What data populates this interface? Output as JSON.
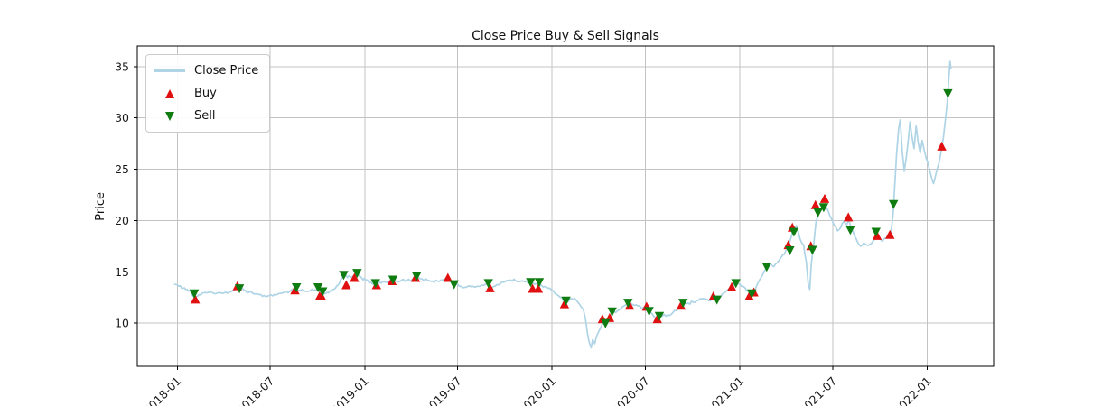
{
  "figure_title": "Close Price Buy & Sell Signals",
  "chart_data": {
    "type": "line",
    "title": "Close Price Buy & Sell Signals",
    "xlabel": "",
    "ylabel": "Price",
    "grid": true,
    "legend_position": "upper left",
    "xlim": [
      "2017-10-15",
      "2022-05-10"
    ],
    "ylim": [
      5.8,
      37.0
    ],
    "y_ticks": [
      10,
      15,
      20,
      25,
      30,
      35
    ],
    "x_ticks": [
      {
        "label": "2018-01",
        "value": "2018-01-01"
      },
      {
        "label": "2018-07",
        "value": "2018-07-01"
      },
      {
        "label": "2019-01",
        "value": "2019-01-01"
      },
      {
        "label": "2019-07",
        "value": "2019-07-01"
      },
      {
        "label": "2020-01",
        "value": "2020-01-01"
      },
      {
        "label": "2020-07",
        "value": "2020-07-01"
      },
      {
        "label": "2021-01",
        "value": "2021-01-01"
      },
      {
        "label": "2021-07",
        "value": "2021-07-01"
      },
      {
        "label": "2022-01",
        "value": "2022-01-01"
      }
    ],
    "colors": {
      "grid": "#c3c3c3",
      "spine": "#000000",
      "tick_text": "#1a1a1a"
    },
    "series": [
      {
        "name": "Close Price",
        "type": "line",
        "color": "#aed4e6",
        "points": [
          [
            "2017-12-27",
            13.8
          ],
          [
            "2018-01-04",
            13.6
          ],
          [
            "2018-01-12",
            13.4
          ],
          [
            "2018-01-20",
            13.3
          ],
          [
            "2018-01-28",
            13.0
          ],
          [
            "2018-02-05",
            12.4
          ],
          [
            "2018-02-13",
            12.8
          ],
          [
            "2018-02-21",
            12.95
          ],
          [
            "2018-03-03",
            13.0
          ],
          [
            "2018-03-13",
            12.9
          ],
          [
            "2018-03-23",
            13.0
          ],
          [
            "2018-04-02",
            12.95
          ],
          [
            "2018-04-12",
            13.05
          ],
          [
            "2018-04-22",
            13.25
          ],
          [
            "2018-04-30",
            13.5
          ],
          [
            "2018-05-10",
            13.25
          ],
          [
            "2018-05-20",
            13.0
          ],
          [
            "2018-05-30",
            12.85
          ],
          [
            "2018-06-09",
            12.8
          ],
          [
            "2018-06-19",
            12.7
          ],
          [
            "2018-06-29",
            12.7
          ],
          [
            "2018-07-09",
            12.8
          ],
          [
            "2018-07-19",
            12.9
          ],
          [
            "2018-07-29",
            13.0
          ],
          [
            "2018-08-08",
            13.1
          ],
          [
            "2018-08-18",
            13.3
          ],
          [
            "2018-08-28",
            13.2
          ],
          [
            "2018-09-07",
            13.1
          ],
          [
            "2018-09-17",
            13.15
          ],
          [
            "2018-09-27",
            13.25
          ],
          [
            "2018-10-03",
            13.3
          ],
          [
            "2018-10-09",
            12.75
          ],
          [
            "2018-10-17",
            12.9
          ],
          [
            "2018-10-25",
            13.1
          ],
          [
            "2018-11-02",
            13.3
          ],
          [
            "2018-11-10",
            13.7
          ],
          [
            "2018-11-18",
            14.4
          ],
          [
            "2018-11-26",
            14.6
          ],
          [
            "2018-12-04",
            14.5
          ],
          [
            "2018-12-12",
            14.6
          ],
          [
            "2018-12-18",
            14.8
          ],
          [
            "2018-12-26",
            14.4
          ],
          [
            "2019-01-03",
            14.2
          ],
          [
            "2019-01-13",
            14.0
          ],
          [
            "2019-01-23",
            13.8
          ],
          [
            "2019-02-02",
            13.9
          ],
          [
            "2019-02-12",
            14.0
          ],
          [
            "2019-02-22",
            14.15
          ],
          [
            "2019-03-04",
            14.1
          ],
          [
            "2019-03-14",
            14.2
          ],
          [
            "2019-03-24",
            14.15
          ],
          [
            "2019-04-03",
            14.25
          ],
          [
            "2019-04-13",
            14.5
          ],
          [
            "2019-04-23",
            14.3
          ],
          [
            "2019-05-03",
            14.2
          ],
          [
            "2019-05-13",
            14.1
          ],
          [
            "2019-05-23",
            14.1
          ],
          [
            "2019-06-02",
            14.2
          ],
          [
            "2019-06-12",
            14.35
          ],
          [
            "2019-06-22",
            14.0
          ],
          [
            "2019-06-28",
            13.8
          ],
          [
            "2019-07-08",
            13.6
          ],
          [
            "2019-07-18",
            13.5
          ],
          [
            "2019-07-28",
            13.55
          ],
          [
            "2019-08-07",
            13.6
          ],
          [
            "2019-08-17",
            13.7
          ],
          [
            "2019-08-27",
            13.85
          ],
          [
            "2019-09-02",
            13.45
          ],
          [
            "2019-09-12",
            13.6
          ],
          [
            "2019-09-22",
            13.85
          ],
          [
            "2019-10-02",
            14.05
          ],
          [
            "2019-10-12",
            14.2
          ],
          [
            "2019-10-22",
            14.15
          ],
          [
            "2019-11-01",
            14.1
          ],
          [
            "2019-11-11",
            14.05
          ],
          [
            "2019-11-21",
            13.95
          ],
          [
            "2019-12-01",
            13.85
          ],
          [
            "2019-12-11",
            13.7
          ],
          [
            "2019-12-21",
            13.5
          ],
          [
            "2019-12-31",
            13.2
          ],
          [
            "2020-01-10",
            12.8
          ],
          [
            "2020-01-20",
            12.5
          ],
          [
            "2020-01-27",
            12.0
          ],
          [
            "2020-02-04",
            12.3
          ],
          [
            "2020-02-14",
            12.4
          ],
          [
            "2020-02-24",
            11.8
          ],
          [
            "2020-03-02",
            11.3
          ],
          [
            "2020-03-06",
            10.4
          ],
          [
            "2020-03-10",
            9.0
          ],
          [
            "2020-03-13",
            8.2
          ],
          [
            "2020-03-17",
            7.6
          ],
          [
            "2020-03-20",
            8.4
          ],
          [
            "2020-03-24",
            8.0
          ],
          [
            "2020-03-30",
            9.0
          ],
          [
            "2020-04-05",
            9.6
          ],
          [
            "2020-04-11",
            10.1
          ],
          [
            "2020-04-19",
            10.3
          ],
          [
            "2020-04-27",
            11.0
          ],
          [
            "2020-05-07",
            11.2
          ],
          [
            "2020-05-17",
            11.6
          ],
          [
            "2020-05-27",
            11.9
          ],
          [
            "2020-06-06",
            11.8
          ],
          [
            "2020-06-16",
            11.7
          ],
          [
            "2020-06-26",
            11.5
          ],
          [
            "2020-07-04",
            11.5
          ],
          [
            "2020-07-14",
            10.9
          ],
          [
            "2020-07-24",
            10.5
          ],
          [
            "2020-08-03",
            10.7
          ],
          [
            "2020-08-13",
            10.8
          ],
          [
            "2020-08-23",
            11.0
          ],
          [
            "2020-09-02",
            11.4
          ],
          [
            "2020-09-12",
            11.9
          ],
          [
            "2020-09-22",
            11.95
          ],
          [
            "2020-10-02",
            12.05
          ],
          [
            "2020-10-12",
            12.25
          ],
          [
            "2020-10-22",
            12.4
          ],
          [
            "2020-11-01",
            12.2
          ],
          [
            "2020-11-11",
            12.55
          ],
          [
            "2020-11-17",
            12.3
          ],
          [
            "2020-11-27",
            12.8
          ],
          [
            "2020-12-07",
            13.2
          ],
          [
            "2020-12-17",
            13.5
          ],
          [
            "2020-12-25",
            13.85
          ],
          [
            "2021-01-04",
            13.6
          ],
          [
            "2021-01-14",
            13.2
          ],
          [
            "2021-01-21",
            12.8
          ],
          [
            "2021-01-29",
            13.1
          ],
          [
            "2021-02-08",
            14.2
          ],
          [
            "2021-02-18",
            15.1
          ],
          [
            "2021-02-26",
            15.8
          ],
          [
            "2021-03-08",
            15.5
          ],
          [
            "2021-03-18",
            16.1
          ],
          [
            "2021-03-28",
            16.7
          ],
          [
            "2021-04-06",
            17.5
          ],
          [
            "2021-04-14",
            19.1
          ],
          [
            "2021-04-21",
            19.5
          ],
          [
            "2021-04-28",
            18.2
          ],
          [
            "2021-05-05",
            17.6
          ],
          [
            "2021-05-10",
            16.0
          ],
          [
            "2021-05-14",
            13.8
          ],
          [
            "2021-05-17",
            13.3
          ],
          [
            "2021-05-20",
            15.8
          ],
          [
            "2021-05-24",
            17.4
          ],
          [
            "2021-05-29",
            19.9
          ],
          [
            "2021-06-03",
            20.7
          ],
          [
            "2021-06-08",
            21.0
          ],
          [
            "2021-06-16",
            21.4
          ],
          [
            "2021-06-22",
            20.9
          ],
          [
            "2021-06-28",
            20.2
          ],
          [
            "2021-07-04",
            19.5
          ],
          [
            "2021-07-10",
            19.0
          ],
          [
            "2021-07-16",
            19.3
          ],
          [
            "2021-07-22",
            19.9
          ],
          [
            "2021-07-28",
            19.6
          ],
          [
            "2021-08-01",
            20.1
          ],
          [
            "2021-08-06",
            19.2
          ],
          [
            "2021-08-12",
            18.5
          ],
          [
            "2021-08-18",
            17.9
          ],
          [
            "2021-08-24",
            17.5
          ],
          [
            "2021-08-30",
            17.8
          ],
          [
            "2021-09-05",
            17.6
          ],
          [
            "2021-09-11",
            17.7
          ],
          [
            "2021-09-17",
            18.0
          ],
          [
            "2021-09-23",
            18.4
          ],
          [
            "2021-09-29",
            18.2
          ],
          [
            "2021-10-05",
            18.0
          ],
          [
            "2021-10-11",
            18.3
          ],
          [
            "2021-10-17",
            18.5
          ],
          [
            "2021-10-22",
            18.8
          ],
          [
            "2021-10-26",
            20.5
          ],
          [
            "2021-10-29",
            23.0
          ],
          [
            "2021-11-02",
            26.5
          ],
          [
            "2021-11-06",
            29.0
          ],
          [
            "2021-11-09",
            29.8
          ],
          [
            "2021-11-13",
            26.8
          ],
          [
            "2021-11-17",
            24.8
          ],
          [
            "2021-11-21",
            26.2
          ],
          [
            "2021-11-25",
            28.0
          ],
          [
            "2021-11-28",
            29.6
          ],
          [
            "2021-12-02",
            28.2
          ],
          [
            "2021-12-06",
            27.0
          ],
          [
            "2021-12-10",
            29.2
          ],
          [
            "2021-12-14",
            27.6
          ],
          [
            "2021-12-18",
            26.6
          ],
          [
            "2021-12-22",
            27.8
          ],
          [
            "2021-12-26",
            26.8
          ],
          [
            "2021-12-30",
            26.0
          ],
          [
            "2022-01-04",
            25.2
          ],
          [
            "2022-01-08",
            24.4
          ],
          [
            "2022-01-13",
            23.6
          ],
          [
            "2022-01-18",
            24.6
          ],
          [
            "2022-01-23",
            25.5
          ],
          [
            "2022-01-28",
            26.8
          ],
          [
            "2022-02-01",
            28.0
          ],
          [
            "2022-02-05",
            29.8
          ],
          [
            "2022-02-08",
            31.2
          ],
          [
            "2022-02-11",
            33.3
          ],
          [
            "2022-02-14",
            35.5
          ],
          [
            "2022-02-16",
            34.8
          ]
        ]
      },
      {
        "name": "Buy",
        "type": "scatter",
        "marker": "triangle-up",
        "color": "#e01010",
        "points": [
          [
            "2018-02-05",
            12.3
          ],
          [
            "2018-04-28",
            13.6
          ],
          [
            "2018-08-18",
            13.2
          ],
          [
            "2018-10-05",
            12.6
          ],
          [
            "2018-10-09",
            12.6
          ],
          [
            "2018-11-26",
            13.7
          ],
          [
            "2018-12-12",
            14.4
          ],
          [
            "2019-01-24",
            13.7
          ],
          [
            "2019-02-23",
            14.1
          ],
          [
            "2019-04-10",
            14.4
          ],
          [
            "2019-06-12",
            14.4
          ],
          [
            "2019-09-02",
            13.4
          ],
          [
            "2019-11-24",
            13.35
          ],
          [
            "2019-12-05",
            13.35
          ],
          [
            "2020-01-25",
            11.85
          ],
          [
            "2020-04-08",
            10.4
          ],
          [
            "2020-04-22",
            10.5
          ],
          [
            "2020-05-31",
            11.7
          ],
          [
            "2020-07-03",
            11.6
          ],
          [
            "2020-07-24",
            10.4
          ],
          [
            "2020-09-08",
            11.7
          ],
          [
            "2020-11-10",
            12.6
          ],
          [
            "2020-12-16",
            13.5
          ],
          [
            "2021-01-19",
            12.6
          ],
          [
            "2021-01-28",
            13.0
          ],
          [
            "2021-04-05",
            17.6
          ],
          [
            "2021-04-13",
            19.3
          ],
          [
            "2021-05-19",
            17.5
          ],
          [
            "2021-05-28",
            21.5
          ],
          [
            "2021-06-15",
            22.1
          ],
          [
            "2021-07-31",
            20.3
          ],
          [
            "2021-09-25",
            18.5
          ],
          [
            "2021-10-20",
            18.6
          ],
          [
            "2022-01-29",
            27.2
          ]
        ]
      },
      {
        "name": "Sell",
        "type": "scatter",
        "marker": "triangle-down",
        "color": "#0e7c10",
        "points": [
          [
            "2018-02-03",
            12.9
          ],
          [
            "2018-05-02",
            13.4
          ],
          [
            "2018-08-21",
            13.5
          ],
          [
            "2018-10-02",
            13.5
          ],
          [
            "2018-10-11",
            13.1
          ],
          [
            "2018-11-21",
            14.7
          ],
          [
            "2018-12-17",
            14.9
          ],
          [
            "2019-01-22",
            13.9
          ],
          [
            "2019-02-25",
            14.25
          ],
          [
            "2019-04-12",
            14.6
          ],
          [
            "2019-06-24",
            13.8
          ],
          [
            "2019-08-30",
            13.9
          ],
          [
            "2019-11-20",
            14.0
          ],
          [
            "2019-12-07",
            14.0
          ],
          [
            "2020-01-28",
            12.2
          ],
          [
            "2020-04-14",
            10.0
          ],
          [
            "2020-04-27",
            11.15
          ],
          [
            "2020-05-28",
            12.0
          ],
          [
            "2020-07-08",
            11.2
          ],
          [
            "2020-07-28",
            10.7
          ],
          [
            "2020-09-12",
            12.0
          ],
          [
            "2020-11-17",
            12.3
          ],
          [
            "2020-12-24",
            13.9
          ],
          [
            "2021-01-24",
            12.9
          ],
          [
            "2021-02-22",
            15.5
          ],
          [
            "2021-04-08",
            17.1
          ],
          [
            "2021-04-16",
            18.9
          ],
          [
            "2021-05-22",
            17.15
          ],
          [
            "2021-06-02",
            20.8
          ],
          [
            "2021-06-13",
            21.3
          ],
          [
            "2021-08-04",
            19.1
          ],
          [
            "2021-09-23",
            18.9
          ],
          [
            "2021-10-27",
            21.6
          ],
          [
            "2022-02-10",
            32.4
          ]
        ]
      }
    ]
  }
}
